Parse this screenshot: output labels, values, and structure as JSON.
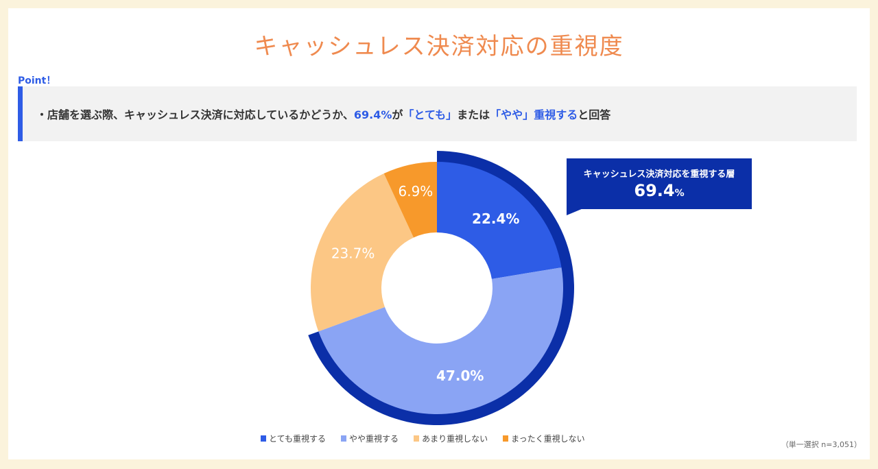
{
  "title": "キャッシュレス決済対応の重視度",
  "point_label": "Point！",
  "point_text": {
    "pre": "・店舗を選ぶ際、キャッシュレス決済に対応しているかどうか、",
    "pct": "69.4%",
    "mid1": "が",
    "q1": "「とても」",
    "mid2": "または",
    "q2": "「やや」",
    "q3": "重視する",
    "post": "と回答"
  },
  "callout": {
    "label": "キャッシュレス決済対応を重視する層",
    "value": "69.4",
    "unit": "%"
  },
  "note": "（単一選択 n=3,051）",
  "chart_data": {
    "type": "pie",
    "donut": true,
    "categories": [
      "とても重視する",
      "やや重視する",
      "あまり重視しない",
      "まったく重視しない"
    ],
    "values": [
      22.4,
      47.0,
      23.7,
      6.9
    ],
    "labels": [
      "22.4%",
      "47.0%",
      "23.7%",
      "6.9%"
    ],
    "colors": [
      "#2e5ce6",
      "#8aa4f4",
      "#fcc785",
      "#f7992b"
    ],
    "highlight": {
      "categories": [
        "とても重視する",
        "やや重視する"
      ],
      "total": 69.4,
      "color": "#0b2fa8"
    },
    "legend": "bottom"
  }
}
